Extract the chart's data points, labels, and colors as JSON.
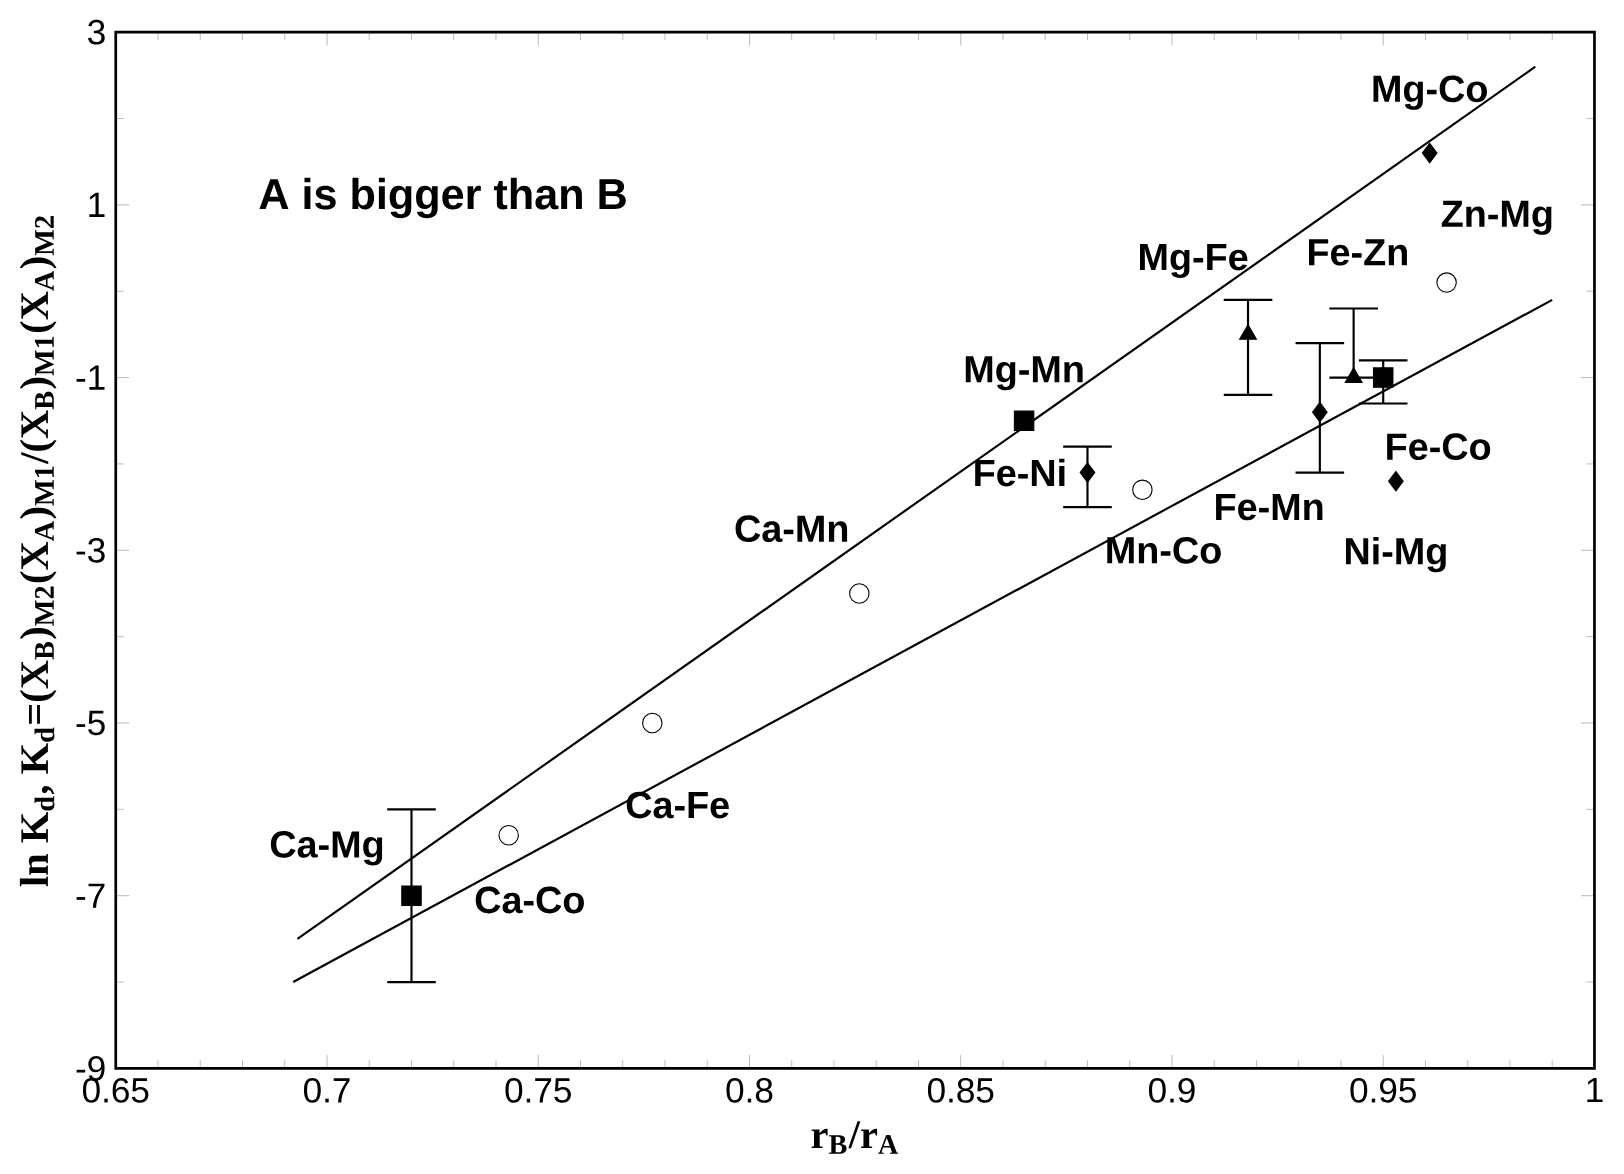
{
  "chart_data": {
    "type": "scatter",
    "xlabel": "r$_{B}$/r$_{A}$",
    "ylabel": "ln K$_{d}$,  K$_{d}$=(X$_{B}$)$_{M2}$(X$_{A}$)$_{M1}$/(X$_{B}$)$_{M1}$(X$_{A}$)$_{M2}$",
    "xlim": [
      0.65,
      1.0
    ],
    "ylim": [
      -9,
      3
    ],
    "xticks": [
      0.65,
      0.7,
      0.75,
      0.8,
      0.85,
      0.9,
      0.95,
      1
    ],
    "yticks": [
      -9,
      -7,
      -5,
      -3,
      -1,
      1,
      3
    ],
    "grid": false,
    "series": [
      {
        "marker": "square",
        "color": "#000000",
        "x": [
          0.72,
          0.865,
          0.95
        ],
        "values": [
          -7.0,
          -1.5,
          -1.0
        ],
        "errors": [
          [
            -8.0,
            -6.0
          ],
          null,
          [
            -1.3,
            -0.8
          ]
        ]
      },
      {
        "marker": "circle",
        "color": "#000000",
        "x": [
          0.743,
          0.777,
          0.826,
          0.893,
          0.965
        ],
        "values": [
          -6.3,
          -5.0,
          -3.5,
          -2.3,
          0.1
        ]
      },
      {
        "marker": "diamond",
        "color": "#000000",
        "x": [
          0.88,
          0.935,
          0.953,
          0.961
        ],
        "values": [
          -2.1,
          -1.4,
          -2.2,
          1.6
        ],
        "errors": [
          [
            -2.5,
            -1.8
          ],
          [
            -2.1,
            -0.6
          ],
          null,
          null
        ]
      },
      {
        "marker": "triangle",
        "color": "#000000",
        "x": [
          0.918,
          0.943
        ],
        "values": [
          -0.5,
          -1.0
        ],
        "errors": [
          [
            -1.2,
            -0.1
          ],
          [
            -1.0,
            -0.2
          ]
        ]
      },
      {
        "type": "line",
        "marker": "none",
        "color": "#000000",
        "x": [
          0.693,
          0.986
        ],
        "values": [
          -7.5,
          2.6
        ]
      },
      {
        "type": "line",
        "marker": "none",
        "color": "#000000",
        "x": [
          0.692,
          0.99
        ],
        "values": [
          -8.0,
          -0.1
        ]
      }
    ],
    "annotations": [
      "A is bigger than B",
      {
        "text": "Ca-Mg",
        "x": 0.72,
        "y": -7.0
      },
      {
        "text": "Mg-Mn",
        "x": 0.865,
        "y": -1.5
      },
      {
        "text": "Fe-Co",
        "x": 0.95,
        "y": -1.0
      },
      {
        "text": "Ca-Co",
        "x": 0.743,
        "y": -6.3
      },
      {
        "text": "Ca-Fe",
        "x": 0.777,
        "y": -5.0
      },
      {
        "text": "Ca-Mn",
        "x": 0.826,
        "y": -3.5
      },
      {
        "text": "Mn-Co",
        "x": 0.893,
        "y": -2.3
      },
      {
        "text": "Zn-Mg",
        "x": 0.965,
        "y": 0.1
      },
      {
        "text": "Fe-Ni",
        "x": 0.88,
        "y": -2.1
      },
      {
        "text": "Fe-Mn",
        "x": 0.935,
        "y": -1.4
      },
      {
        "text": "Ni-Mg",
        "x": 0.953,
        "y": -2.2
      },
      {
        "text": "Mg-Co",
        "x": 0.961,
        "y": 1.6
      },
      {
        "text": "Mg-Fe",
        "x": 0.918,
        "y": -0.5
      },
      {
        "text": "Fe-Zn",
        "x": 0.943,
        "y": -1.0
      }
    ]
  }
}
